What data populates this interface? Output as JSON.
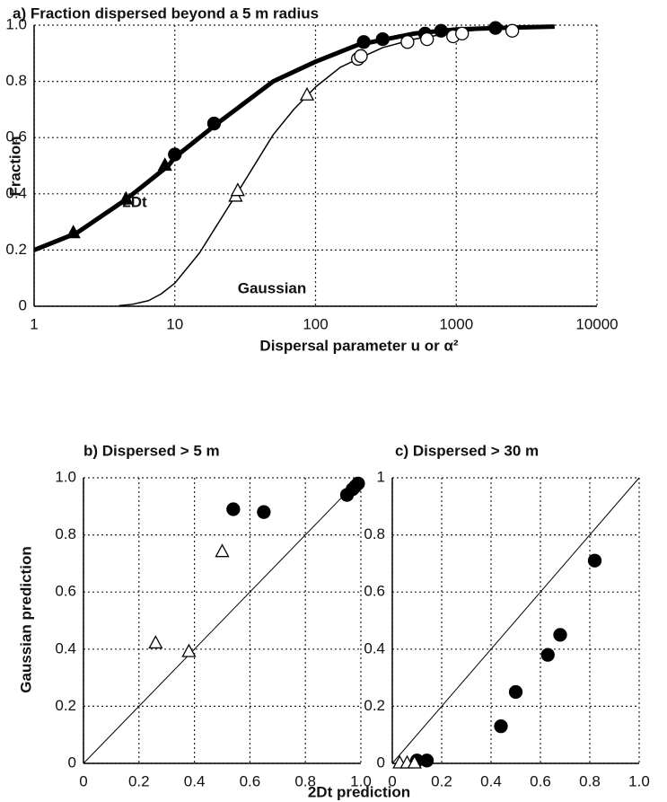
{
  "chart_data": [
    {
      "type": "line",
      "title": "a) Fraction dispersed beyond a 5 m radius",
      "xlabel": "Dispersal parameter u or α²",
      "ylabel": "Fraction",
      "xscale": "log",
      "xlim": [
        1,
        10000
      ],
      "ylim": [
        0,
        1
      ],
      "xticks": [
        1,
        10,
        100,
        1000,
        10000
      ],
      "yticks": [
        0,
        0.2,
        0.4,
        0.6,
        0.8,
        {
          "value": 1,
          "label": "1.0"
        }
      ],
      "grid": true,
      "series": [
        {
          "name": "2Dt",
          "mark": "line",
          "width": 5,
          "color": "#000000",
          "x": [
            1,
            2,
            4.5,
            9,
            10,
            20,
            50,
            100,
            200,
            500,
            1000,
            2000,
            5000
          ],
          "values": [
            0.2,
            0.26,
            0.38,
            0.5,
            0.53,
            0.65,
            0.8,
            0.87,
            0.93,
            0.97,
            0.985,
            0.99,
            0.995
          ]
        },
        {
          "name": "Gaussian",
          "mark": "line",
          "width": 1.5,
          "color": "#000000",
          "x": [
            4,
            5,
            6.5,
            8,
            10,
            15,
            20,
            30,
            50,
            70,
            100,
            150,
            200,
            300,
            500,
            1000,
            2000,
            5000
          ],
          "values": [
            0.002,
            0.007,
            0.02,
            0.044,
            0.082,
            0.19,
            0.29,
            0.43,
            0.61,
            0.7,
            0.78,
            0.85,
            0.88,
            0.92,
            0.95,
            0.975,
            0.99,
            0.995
          ]
        },
        {
          "mark": "triangle",
          "fill": "filled",
          "color": "#000000",
          "x": [
            1.9,
            4.5,
            8.5
          ],
          "values": [
            0.26,
            0.38,
            0.5
          ]
        },
        {
          "mark": "circle",
          "fill": "filled",
          "color": "#000000",
          "x": [
            10,
            19,
            220,
            300,
            600,
            780,
            1900
          ],
          "values": [
            0.54,
            0.65,
            0.94,
            0.95,
            0.97,
            0.98,
            0.99
          ]
        },
        {
          "mark": "triangle",
          "fill": "open",
          "color": "#000000",
          "x": [
            27,
            28,
            87
          ],
          "values": [
            0.39,
            0.41,
            0.75
          ]
        },
        {
          "mark": "circle",
          "fill": "open",
          "color": "#000000",
          "x": [
            200,
            210,
            450,
            620,
            950,
            1100,
            2500
          ],
          "values": [
            0.88,
            0.89,
            0.94,
            0.95,
            0.96,
            0.97,
            0.98
          ]
        }
      ]
    },
    {
      "type": "scatter",
      "title": "b) Dispersed > 5 m",
      "xlabel": "2Dt prediction",
      "ylabel": "Gaussian prediction",
      "xlim": [
        0,
        1
      ],
      "ylim": [
        0,
        1
      ],
      "xticks": [
        0,
        0.2,
        0.4,
        0.6,
        0.8,
        {
          "value": 1,
          "label": "1.0"
        }
      ],
      "yticks": [
        0,
        0.2,
        0.4,
        0.6,
        0.8,
        {
          "value": 1,
          "label": "1.0"
        }
      ],
      "grid": true,
      "series": [
        {
          "mark": "line",
          "width": 1,
          "color": "#000000",
          "x": [
            0,
            1
          ],
          "values": [
            0,
            1
          ]
        },
        {
          "mark": "circle",
          "fill": "filled",
          "color": "#000000",
          "x": [
            0.54,
            0.65,
            0.95,
            0.97,
            0.98,
            0.99
          ],
          "values": [
            0.89,
            0.88,
            0.94,
            0.96,
            0.97,
            0.98
          ]
        },
        {
          "mark": "triangle",
          "fill": "open",
          "color": "#000000",
          "x": [
            0.26,
            0.38,
            0.5
          ],
          "values": [
            0.42,
            0.39,
            0.74
          ]
        }
      ]
    },
    {
      "type": "scatter",
      "title": "c) Dispersed > 30 m",
      "xlim": [
        0,
        1
      ],
      "ylim": [
        0,
        1
      ],
      "xticks": [
        0,
        0.2,
        0.4,
        0.6,
        0.8,
        {
          "value": 1,
          "label": "1.0"
        }
      ],
      "yticks": [
        0,
        0.2,
        0.4,
        0.6,
        0.8,
        1
      ],
      "grid": true,
      "series": [
        {
          "mark": "line",
          "width": 1,
          "color": "#000000",
          "x": [
            0,
            1
          ],
          "values": [
            0,
            1
          ]
        },
        {
          "mark": "circle",
          "fill": "filled",
          "color": "#000000",
          "x": [
            0.1,
            0.14,
            0.44,
            0.5,
            0.63,
            0.68,
            0.82
          ],
          "values": [
            0.01,
            0.01,
            0.13,
            0.25,
            0.38,
            0.45,
            0.71
          ]
        },
        {
          "mark": "triangle",
          "fill": "open",
          "color": "#000000",
          "x": [
            0.03,
            0.06,
            0.09
          ],
          "values": [
            0,
            0,
            0
          ]
        }
      ]
    }
  ]
}
